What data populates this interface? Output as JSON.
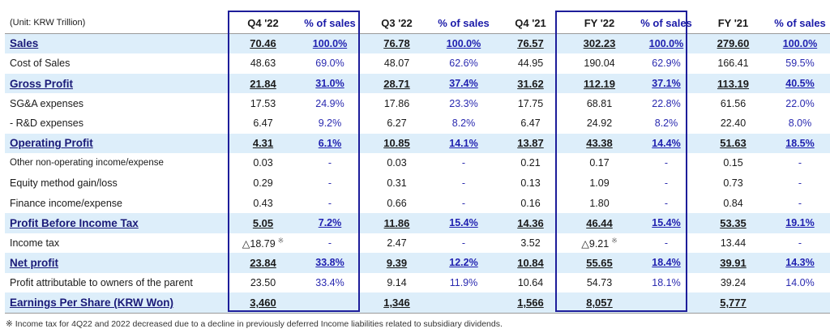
{
  "unit": "(Unit: KRW Trillion)",
  "headers": [
    "Q4 '22",
    "% of sales",
    "Q3 '22",
    "% of sales",
    "Q4 '21",
    "FY '22",
    "% of sales",
    "FY '21",
    "% of sales"
  ],
  "rows": [
    {
      "label": "Sales",
      "style": "hl",
      "cells": [
        "70.46",
        "100.0%",
        "76.78",
        "100.0%",
        "76.57",
        "302.23",
        "100.0%",
        "279.60",
        "100.0%"
      ]
    },
    {
      "label": "Cost of Sales",
      "style": "norm",
      "cells": [
        "48.63",
        "69.0%",
        "48.07",
        "62.6%",
        "44.95",
        "190.04",
        "62.9%",
        "166.41",
        "59.5%"
      ]
    },
    {
      "label": "Gross Profit",
      "style": "hl",
      "cells": [
        "21.84",
        "31.0%",
        "28.71",
        "37.4%",
        "31.62",
        "112.19",
        "37.1%",
        "113.19",
        "40.5%"
      ]
    },
    {
      "label": "SG&A expenses",
      "style": "norm",
      "cells": [
        "17.53",
        "24.9%",
        "17.86",
        "23.3%",
        "17.75",
        "68.81",
        "22.8%",
        "61.56",
        "22.0%"
      ]
    },
    {
      "label": " - R&D expenses",
      "style": "norm",
      "cells": [
        "6.47",
        "9.2%",
        "6.27",
        "8.2%",
        "6.47",
        "24.92",
        "8.2%",
        "22.40",
        "8.0%"
      ]
    },
    {
      "label": "Operating Profit",
      "style": "hl",
      "cells": [
        "4.31",
        "6.1%",
        "10.85",
        "14.1%",
        "13.87",
        "43.38",
        "14.4%",
        "51.63",
        "18.5%"
      ]
    },
    {
      "label": "Other non-operating income/expense",
      "style": "norm small",
      "cells": [
        "0.03",
        "-",
        "0.03",
        "-",
        "0.21",
        "0.17",
        "-",
        "0.15",
        "-"
      ]
    },
    {
      "label": "Equity method gain/loss",
      "style": "norm",
      "cells": [
        "0.29",
        "-",
        "0.31",
        "-",
        "0.13",
        "1.09",
        "-",
        "0.73",
        "-"
      ]
    },
    {
      "label": "Finance income/expense",
      "style": "norm",
      "cells": [
        "0.43",
        "-",
        "0.66",
        "-",
        "0.16",
        "1.80",
        "-",
        "0.84",
        "-"
      ]
    },
    {
      "label": "Profit Before Income Tax",
      "style": "hl",
      "cells": [
        "5.05",
        "7.2%",
        "11.86",
        "15.4%",
        "14.36",
        "46.44",
        "15.4%",
        "53.35",
        "19.1%"
      ]
    },
    {
      "label": "Income tax",
      "style": "norm",
      "cells": [
        "△18.79",
        "-",
        "2.47",
        "-",
        "3.52",
        "△9.21",
        "-",
        "13.44",
        "-"
      ]
    },
    {
      "label": "Net profit",
      "style": "hl",
      "cells": [
        "23.84",
        "33.8%",
        "9.39",
        "12.2%",
        "10.84",
        "55.65",
        "18.4%",
        "39.91",
        "14.3%"
      ]
    },
    {
      "label": "Profit attributable to owners of the parent",
      "style": "norm",
      "cells": [
        "23.50",
        "33.4%",
        "9.14",
        "11.9%",
        "10.64",
        "54.73",
        "18.1%",
        "39.24",
        "14.0%"
      ]
    },
    {
      "label": "Earnings Per Share (KRW Won)",
      "style": "hl last",
      "cells": [
        "3,460",
        "",
        "1,346",
        "",
        "1,566",
        "8,057",
        "",
        "5,777",
        ""
      ]
    }
  ],
  "tax_mark": "※",
  "footnote": "※ Income tax for 4Q22 and 2022 decreased due to a decline in previously deferred Income liabilities related to subsidiary dividends."
}
